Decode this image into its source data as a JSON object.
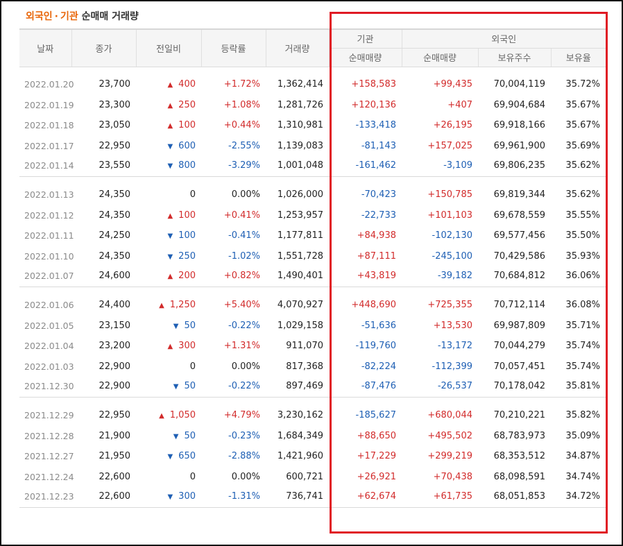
{
  "title": {
    "part1": "외국인",
    "sep": "·",
    "part2": "기관",
    "rest": "순매매 거래량"
  },
  "headers": {
    "date": "날짜",
    "close": "종가",
    "change": "전일비",
    "rate": "등락률",
    "volume": "거래량",
    "institution": "기관",
    "foreign": "외국인",
    "inst_net": "순매매량",
    "foreign_net": "순매매량",
    "foreign_shares": "보유주수",
    "foreign_ratio": "보유율"
  },
  "colors": {
    "up": "#d22b2b",
    "down": "#1e5fb4",
    "highlight_box": "#e01a24",
    "title_accent": "#e8660a"
  },
  "icons": {
    "up": "up-triangle-icon",
    "down": "down-triangle-icon"
  },
  "rows": [
    {
      "date": "2022.01.20",
      "close": "23,700",
      "dir": "up",
      "change": "400",
      "rate": "+1.72%",
      "volume": "1,362,414",
      "inst": "+158,583",
      "foreign": "+99,435",
      "shares": "70,004,119",
      "ratio": "35.72%"
    },
    {
      "date": "2022.01.19",
      "close": "23,300",
      "dir": "up",
      "change": "250",
      "rate": "+1.08%",
      "volume": "1,281,726",
      "inst": "+120,136",
      "foreign": "+407",
      "shares": "69,904,684",
      "ratio": "35.67%"
    },
    {
      "date": "2022.01.18",
      "close": "23,050",
      "dir": "up",
      "change": "100",
      "rate": "+0.44%",
      "volume": "1,310,981",
      "inst": "-133,418",
      "foreign": "+26,195",
      "shares": "69,918,166",
      "ratio": "35.67%"
    },
    {
      "date": "2022.01.17",
      "close": "22,950",
      "dir": "down",
      "change": "600",
      "rate": "-2.55%",
      "volume": "1,139,083",
      "inst": "-81,143",
      "foreign": "+157,025",
      "shares": "69,961,900",
      "ratio": "35.69%"
    },
    {
      "date": "2022.01.14",
      "close": "23,550",
      "dir": "down",
      "change": "800",
      "rate": "-3.29%",
      "volume": "1,001,048",
      "inst": "-161,462",
      "foreign": "-3,109",
      "shares": "69,806,235",
      "ratio": "35.62%"
    },
    {
      "date": "2022.01.13",
      "close": "24,350",
      "dir": "none",
      "change": "0",
      "rate": "0.00%",
      "volume": "1,026,000",
      "inst": "-70,423",
      "foreign": "+150,785",
      "shares": "69,819,344",
      "ratio": "35.62%"
    },
    {
      "date": "2022.01.12",
      "close": "24,350",
      "dir": "up",
      "change": "100",
      "rate": "+0.41%",
      "volume": "1,253,957",
      "inst": "-22,733",
      "foreign": "+101,103",
      "shares": "69,678,559",
      "ratio": "35.55%"
    },
    {
      "date": "2022.01.11",
      "close": "24,250",
      "dir": "down",
      "change": "100",
      "rate": "-0.41%",
      "volume": "1,177,811",
      "inst": "+84,938",
      "foreign": "-102,130",
      "shares": "69,577,456",
      "ratio": "35.50%"
    },
    {
      "date": "2022.01.10",
      "close": "24,350",
      "dir": "down",
      "change": "250",
      "rate": "-1.02%",
      "volume": "1,551,728",
      "inst": "+87,111",
      "foreign": "-245,100",
      "shares": "70,429,586",
      "ratio": "35.93%"
    },
    {
      "date": "2022.01.07",
      "close": "24,600",
      "dir": "up",
      "change": "200",
      "rate": "+0.82%",
      "volume": "1,490,401",
      "inst": "+43,819",
      "foreign": "-39,182",
      "shares": "70,684,812",
      "ratio": "36.06%"
    },
    {
      "date": "2022.01.06",
      "close": "24,400",
      "dir": "up",
      "change": "1,250",
      "rate": "+5.40%",
      "volume": "4,070,927",
      "inst": "+448,690",
      "foreign": "+725,355",
      "shares": "70,712,114",
      "ratio": "36.08%"
    },
    {
      "date": "2022.01.05",
      "close": "23,150",
      "dir": "down",
      "change": "50",
      "rate": "-0.22%",
      "volume": "1,029,158",
      "inst": "-51,636",
      "foreign": "+13,530",
      "shares": "69,987,809",
      "ratio": "35.71%"
    },
    {
      "date": "2022.01.04",
      "close": "23,200",
      "dir": "up",
      "change": "300",
      "rate": "+1.31%",
      "volume": "911,070",
      "inst": "-119,760",
      "foreign": "-13,172",
      "shares": "70,044,279",
      "ratio": "35.74%"
    },
    {
      "date": "2022.01.03",
      "close": "22,900",
      "dir": "none",
      "change": "0",
      "rate": "0.00%",
      "volume": "817,368",
      "inst": "-82,224",
      "foreign": "-112,399",
      "shares": "70,057,451",
      "ratio": "35.74%"
    },
    {
      "date": "2021.12.30",
      "close": "22,900",
      "dir": "down",
      "change": "50",
      "rate": "-0.22%",
      "volume": "897,469",
      "inst": "-87,476",
      "foreign": "-26,537",
      "shares": "70,178,042",
      "ratio": "35.81%"
    },
    {
      "date": "2021.12.29",
      "close": "22,950",
      "dir": "up",
      "change": "1,050",
      "rate": "+4.79%",
      "volume": "3,230,162",
      "inst": "-185,627",
      "foreign": "+680,044",
      "shares": "70,210,221",
      "ratio": "35.82%"
    },
    {
      "date": "2021.12.28",
      "close": "21,900",
      "dir": "down",
      "change": "50",
      "rate": "-0.23%",
      "volume": "1,684,349",
      "inst": "+88,650",
      "foreign": "+495,502",
      "shares": "68,783,973",
      "ratio": "35.09%"
    },
    {
      "date": "2021.12.27",
      "close": "21,950",
      "dir": "down",
      "change": "650",
      "rate": "-2.88%",
      "volume": "1,421,960",
      "inst": "+17,229",
      "foreign": "+299,219",
      "shares": "68,353,512",
      "ratio": "34.87%"
    },
    {
      "date": "2021.12.24",
      "close": "22,600",
      "dir": "none",
      "change": "0",
      "rate": "0.00%",
      "volume": "600,721",
      "inst": "+26,921",
      "foreign": "+70,438",
      "shares": "68,098,591",
      "ratio": "34.74%"
    },
    {
      "date": "2021.12.23",
      "close": "22,600",
      "dir": "down",
      "change": "300",
      "rate": "-1.31%",
      "volume": "736,741",
      "inst": "+62,674",
      "foreign": "+61,735",
      "shares": "68,051,853",
      "ratio": "34.72%"
    }
  ]
}
